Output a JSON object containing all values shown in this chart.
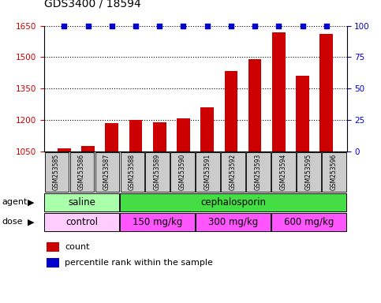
{
  "title": "GDS3400 / 18594",
  "samples": [
    "GSM253585",
    "GSM253586",
    "GSM253587",
    "GSM253588",
    "GSM253589",
    "GSM253590",
    "GSM253591",
    "GSM253592",
    "GSM253593",
    "GSM253594",
    "GSM253595",
    "GSM253596"
  ],
  "counts": [
    1065,
    1075,
    1185,
    1200,
    1190,
    1207,
    1260,
    1435,
    1490,
    1620,
    1410,
    1610
  ],
  "percentile_ranks": [
    100,
    100,
    100,
    100,
    100,
    100,
    100,
    100,
    100,
    100,
    100,
    100
  ],
  "bar_color": "#cc0000",
  "dot_color": "#0000cc",
  "ylim_left": [
    1050,
    1650
  ],
  "ylim_right": [
    0,
    100
  ],
  "yticks_left": [
    1050,
    1200,
    1350,
    1500,
    1650
  ],
  "yticks_right": [
    0,
    25,
    50,
    75,
    100
  ],
  "agent_groups": [
    {
      "label": "saline",
      "start": 0,
      "end": 3,
      "color": "#aaffaa"
    },
    {
      "label": "cephalosporin",
      "start": 3,
      "end": 12,
      "color": "#44dd44"
    }
  ],
  "dose_groups": [
    {
      "label": "control",
      "start": 0,
      "end": 3,
      "color": "#ffccff"
    },
    {
      "label": "150 mg/kg",
      "start": 3,
      "end": 6,
      "color": "#ff55ff"
    },
    {
      "label": "300 mg/kg",
      "start": 6,
      "end": 9,
      "color": "#ff55ff"
    },
    {
      "label": "600 mg/kg",
      "start": 9,
      "end": 12,
      "color": "#ff55ff"
    }
  ],
  "background_color": "#ffffff",
  "tick_label_color_left": "#cc0000",
  "tick_label_color_right": "#0000cc",
  "xticklabel_bg": "#cccccc",
  "agent_row_label": "agent",
  "dose_row_label": "dose",
  "grid_color": "#000000",
  "legend_count_color": "#cc0000",
  "legend_pct_color": "#0000cc"
}
